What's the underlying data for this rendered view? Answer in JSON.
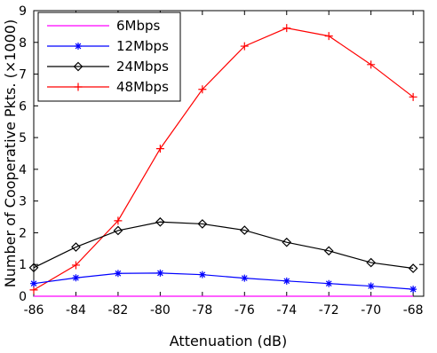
{
  "chart_data": {
    "type": "line",
    "title": "",
    "xlabel": "Attenuation (dB)",
    "ylabel": "Number of Cooperative Pkts. (×1000)",
    "x": [
      -86,
      -84,
      -82,
      -80,
      -78,
      -76,
      -74,
      -72,
      -70,
      -68
    ],
    "xlim": [
      -86,
      -67.5
    ],
    "ylim": [
      0,
      9
    ],
    "xticks": [
      "-86",
      "-84",
      "-82",
      "-80",
      "-78",
      "-76",
      "-74",
      "-72",
      "-70",
      "-68"
    ],
    "yticks": [
      "0",
      "1",
      "2",
      "3",
      "4",
      "5",
      "6",
      "7",
      "8",
      "9"
    ],
    "grid": false,
    "legend_position": "top-left",
    "series": [
      {
        "name": "6Mbps",
        "color": "#ff00ff",
        "marker": "none",
        "values": [
          0.0,
          0.0,
          0.0,
          0.0,
          0.0,
          0.0,
          0.0,
          0.0,
          0.0,
          0.0
        ]
      },
      {
        "name": "12Mbps",
        "color": "#0000ff",
        "marker": "asterisk",
        "values": [
          0.4,
          0.58,
          0.72,
          0.73,
          0.68,
          0.57,
          0.48,
          0.4,
          0.32,
          0.22
        ]
      },
      {
        "name": "24Mbps",
        "color": "#000000",
        "marker": "diamond",
        "values": [
          0.9,
          1.55,
          2.07,
          2.34,
          2.28,
          2.08,
          1.7,
          1.43,
          1.06,
          0.88
        ]
      },
      {
        "name": "48Mbps",
        "color": "#ff0000",
        "marker": "plus",
        "values": [
          0.2,
          0.98,
          2.38,
          4.65,
          6.52,
          7.88,
          8.45,
          8.2,
          7.3,
          6.28
        ]
      }
    ]
  }
}
